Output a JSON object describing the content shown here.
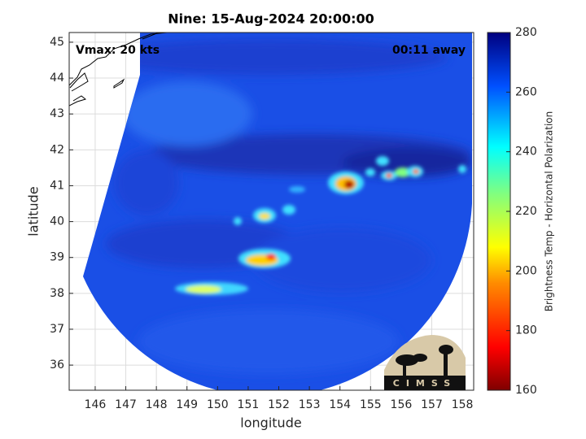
{
  "chart_data": {
    "type": "image",
    "title": "Nine: 15-Aug-2024 20:00:00",
    "annotations": [
      "Vmax: 20 kts",
      "00:11 away"
    ],
    "xlabel": "longitude",
    "ylabel": "latitude",
    "xlim": [
      145.15,
      158.37
    ],
    "xticks": [
      146,
      147,
      148,
      149,
      150,
      151,
      152,
      153,
      154,
      155,
      156,
      157,
      158
    ],
    "ylim": [
      35.3,
      45.27
    ],
    "yticks": [
      36,
      37,
      38,
      39,
      40,
      41,
      42,
      43,
      44,
      45
    ],
    "grid": true,
    "colorbar": {
      "label": "Brightness Temp - Horizontal Polarization",
      "lim": [
        160,
        280
      ],
      "ticks": [
        160,
        180,
        200,
        220,
        240,
        260,
        280
      ]
    },
    "logo": "CIMSS"
  }
}
